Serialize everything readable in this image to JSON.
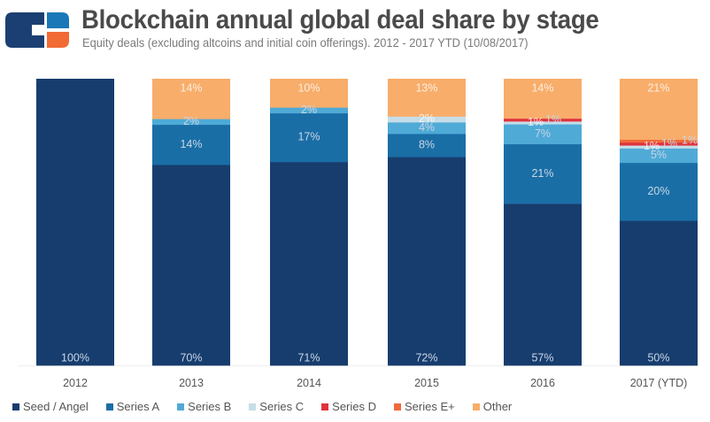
{
  "header": {
    "logo": "cb-insights-logo",
    "title": "Blockchain annual global deal share by stage",
    "subtitle": "Equity deals (excluding altcoins and initial coin offerings). 2012 - 2017 YTD (10/08/2017)"
  },
  "colors": {
    "Seed / Angel": "#173d6e",
    "Series A": "#1a6ea6",
    "Series B": "#4faad6",
    "Series C": "#c5dde8",
    "Series D": "#e0323e",
    "Series E+": "#f06a3a",
    "Other": "#f8ad6a",
    "logo_dark": "#1b3f72",
    "logo_blue": "#1a78b8",
    "logo_orange": "#f26b35"
  },
  "chart_data": {
    "type": "bar",
    "stacked": true,
    "normalized": true,
    "title": "Blockchain annual global deal share by stage",
    "subtitle": "Equity deals (excluding altcoins and initial coin offerings). 2012 - 2017 YTD (10/08/2017)",
    "xlabel": "",
    "ylabel": "",
    "ylim": [
      0,
      100
    ],
    "grid": false,
    "legend_position": "bottom",
    "categories": [
      "2012",
      "2013",
      "2014",
      "2015",
      "2016",
      "2017 (YTD)"
    ],
    "series": [
      {
        "name": "Seed / Angel",
        "values": [
          100,
          70,
          71,
          72,
          57,
          50
        ],
        "labels": [
          "100%",
          "70%",
          "71%",
          "72%",
          "57%",
          "50%"
        ]
      },
      {
        "name": "Series A",
        "values": [
          0,
          14,
          17,
          8,
          21,
          20
        ],
        "labels": [
          "",
          "14%",
          "17%",
          "8%",
          "21%",
          "20%"
        ]
      },
      {
        "name": "Series B",
        "values": [
          0,
          2,
          2,
          4,
          7,
          5
        ],
        "labels": [
          "",
          "2%",
          "2%",
          "4%",
          "7%",
          "5%"
        ]
      },
      {
        "name": "Series C",
        "values": [
          0,
          0,
          0,
          2,
          1,
          1
        ],
        "labels": [
          "",
          "",
          "",
          "2%",
          "1%",
          "1%"
        ]
      },
      {
        "name": "Series D",
        "values": [
          0,
          0,
          0,
          0,
          1,
          1
        ],
        "labels": [
          "",
          "",
          "",
          "",
          "1%",
          "1%"
        ]
      },
      {
        "name": "Series E+",
        "values": [
          0,
          0,
          0,
          0,
          0,
          1
        ],
        "labels": [
          "",
          "",
          "",
          "",
          "",
          "1%"
        ]
      },
      {
        "name": "Other",
        "values": [
          0,
          14,
          10,
          13,
          14,
          21
        ],
        "labels": [
          "",
          "14%",
          "10%",
          "13%",
          "14%",
          "21%"
        ]
      }
    ]
  },
  "legend": [
    {
      "name": "Seed / Angel"
    },
    {
      "name": "Series A"
    },
    {
      "name": "Series B"
    },
    {
      "name": "Series C"
    },
    {
      "name": "Series D"
    },
    {
      "name": "Series E+"
    },
    {
      "name": "Other"
    }
  ]
}
